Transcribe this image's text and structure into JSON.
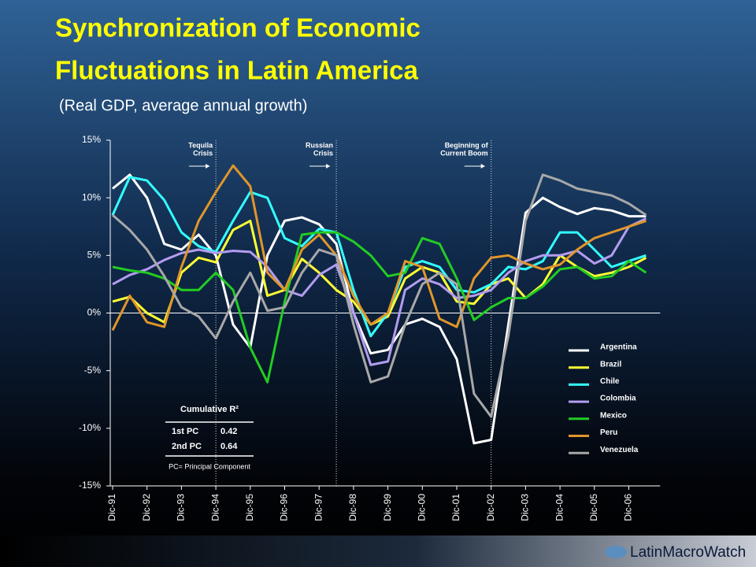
{
  "chart_data": {
    "type": "line",
    "title": [
      "Synchronization of Economic",
      "Fluctuations in Latin America"
    ],
    "subtitle": "(Real GDP, average annual growth)",
    "categories": [
      "Dic-91",
      null,
      "Dic-92",
      null,
      "Dic-93",
      null,
      "Dic-94",
      null,
      "Dic-95",
      null,
      "Dic-96",
      null,
      "Dic-97",
      null,
      "Dic-98",
      null,
      "Dic-99",
      null,
      "Dic-00",
      null,
      "Dic-01",
      null,
      "Dic-02",
      null,
      "Dic-03",
      null,
      "Dic-04",
      null,
      "Dic-05",
      null,
      "Dic-06",
      null
    ],
    "ylim": [
      -15,
      15
    ],
    "yticks": [
      {
        "value": -15,
        "label": "-15%"
      },
      {
        "value": -10,
        "label": "-10%"
      },
      {
        "value": -5,
        "label": "-5%"
      },
      {
        "value": 0,
        "label": "0%"
      },
      {
        "value": 5,
        "label": "5%"
      },
      {
        "value": 10,
        "label": "10%"
      },
      {
        "value": 15,
        "label": "15%"
      }
    ],
    "zero_line": true,
    "legend": "right",
    "series": [
      {
        "name": "Argentina",
        "color": "#ffffff",
        "values": [
          10.8,
          12,
          10,
          6,
          5.5,
          6.8,
          5,
          -1,
          -3,
          5,
          8,
          8.3,
          7.7,
          6,
          0,
          -3.5,
          -3.2,
          -1,
          -0.5,
          -1.2,
          -4,
          -11.3,
          -11,
          -1,
          8.7,
          10,
          9.2,
          8.6,
          9.1,
          8.9,
          8.4,
          8.4
        ]
      },
      {
        "name": "Brazil",
        "color": "#ffff33",
        "values": [
          1,
          1.4,
          0,
          -0.8,
          3.5,
          4.8,
          4.4,
          7.2,
          8,
          1.5,
          2,
          4.7,
          3.5,
          2,
          1,
          -1,
          -0.3,
          3,
          4,
          3.5,
          1,
          0.8,
          2.5,
          3,
          1.3,
          2.5,
          5,
          4,
          3.2,
          3.5,
          4,
          4.8
        ]
      },
      {
        "name": "Chile",
        "color": "#33ffff",
        "values": [
          8.5,
          11.8,
          11.5,
          9.8,
          7,
          5.8,
          5.3,
          8,
          10.5,
          10,
          6.5,
          5.8,
          7.3,
          7,
          2,
          -2,
          0,
          4,
          4.5,
          4,
          2,
          1.8,
          2.5,
          4,
          3.8,
          4.5,
          7,
          7,
          5.5,
          4,
          4.5,
          5
        ]
      },
      {
        "name": "Colombia",
        "color": "#b39cf0",
        "values": [
          2.5,
          3.3,
          3.8,
          4.6,
          5.2,
          5.5,
          5.2,
          5.4,
          5.3,
          4,
          2,
          1.5,
          3.3,
          4.2,
          0,
          -4.5,
          -4.2,
          2,
          3,
          2.5,
          1.3,
          1.5,
          2,
          3.5,
          4.5,
          5,
          5,
          5.4,
          4.3,
          5,
          7.5,
          8.2
        ]
      },
      {
        "name": "Mexico",
        "color": "#22cc22",
        "values": [
          4,
          3.7,
          3.5,
          3,
          2,
          2,
          3.5,
          2,
          -3,
          -6,
          1,
          6.8,
          7,
          7,
          6.2,
          5,
          3.2,
          3.5,
          6.5,
          6,
          3,
          -0.6,
          0.5,
          1.3,
          1.3,
          2.3,
          3.8,
          4,
          3,
          3.2,
          4.5,
          3.5
        ]
      },
      {
        "name": "Peru",
        "color": "#e0962a",
        "values": [
          -1.5,
          1.5,
          -0.8,
          -1.2,
          4,
          8,
          10.5,
          12.8,
          11,
          3.5,
          2,
          5.5,
          6.8,
          5,
          1.5,
          -1,
          0,
          4.5,
          4,
          -0.5,
          -1.2,
          3,
          4.8,
          5,
          4.3,
          3.8,
          4.2,
          5.5,
          6.5,
          7,
          7.5,
          8
        ]
      },
      {
        "name": "Venezuela",
        "color": "#a8a8a8",
        "values": [
          8.5,
          7.2,
          5.5,
          3.2,
          0.5,
          -0.3,
          -2.2,
          1,
          3.5,
          0.2,
          0.5,
          3.5,
          5.5,
          5,
          -1,
          -6,
          -5.5,
          -1,
          2.5,
          3.5,
          2.5,
          -7,
          -9,
          -2,
          8,
          12,
          11.5,
          10.8,
          10.5,
          10.2,
          9.5,
          8.5
        ]
      }
    ],
    "annotations": [
      {
        "lines": [
          "Tequila",
          "Crisis"
        ],
        "x": 6
      },
      {
        "lines": [
          "Russian",
          "Crisis"
        ],
        "x": 13
      },
      {
        "lines": [
          "Beginning of",
          "Current Boom"
        ],
        "x": 22
      }
    ],
    "inset": {
      "title": "Cumulative R²",
      "rows": [
        [
          "1st PC",
          "0.42"
        ],
        [
          "2nd PC",
          "0.64"
        ]
      ],
      "note": "PC= Principal Component"
    }
  },
  "footer": {
    "logo": "LatinMacroWatch"
  }
}
